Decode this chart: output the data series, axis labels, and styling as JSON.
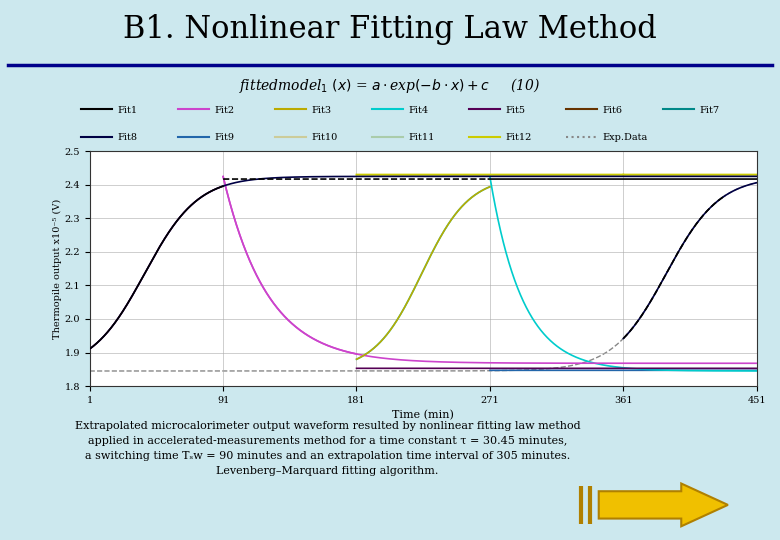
{
  "title": "B1. Nonlinear Fitting Law Method",
  "bg_color": "#cce8ee",
  "plot_bg_color": "#ffffff",
  "formula_text": "fittedmodel",
  "xlabel": "Time (min)",
  "ylabel": "Thermopile output x10⁻⁵ (V)",
  "xlim": [
    1,
    451
  ],
  "ylim": [
    1.8,
    2.5
  ],
  "yticks": [
    1.8,
    1.9,
    2.0,
    2.1,
    2.2,
    2.3,
    2.4,
    2.5
  ],
  "xticks": [
    1,
    91,
    181,
    271,
    361,
    451
  ],
  "caption_line1": "Extrapolated microcalorimeter output waveform resulted by nonlinear fitting law method",
  "caption_line2": "applied in accelerated-measurements method for a time constant τ = 30.45 minutes,",
  "caption_line3": "a switching time Tₛw = 90 minutes and an extrapolation time interval of 305 minutes.",
  "caption_line4": "Levenberg–Marquard fitting algorithm.",
  "fit1_color": "#000000",
  "fit2_color": "#cc44cc",
  "fit3_color": "#bbaa00",
  "fit4_color": "#00cccc",
  "fit5_color": "#550055",
  "fit6_color": "#663300",
  "fit7_color": "#008888",
  "fit8_color": "#000044",
  "fit9_color": "#2266aa",
  "fit10_color": "#cccc99",
  "fit11_color": "#aaccaa",
  "fit12_color": "#cccc00",
  "expdata_color": "#888888",
  "blue_line_color": "#000066",
  "title_color": "#000000",
  "hline_color": "#00008B"
}
